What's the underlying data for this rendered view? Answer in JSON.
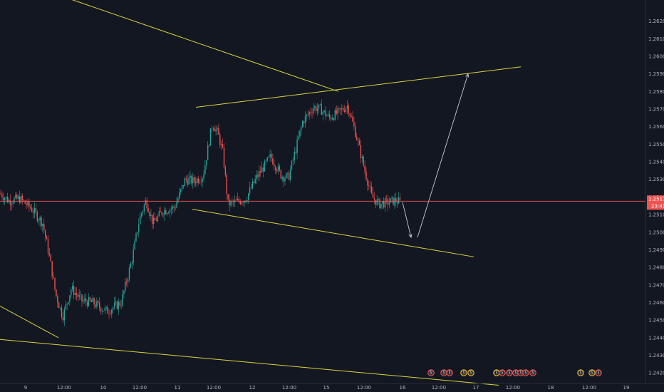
{
  "chart_data": {
    "type": "candlestick",
    "instrument_hint": "",
    "ylim": [
      1.2414,
      1.2632
    ],
    "y_ticks": [
      "1.26200",
      "1.26100",
      "1.26000",
      "1.25900",
      "1.25800",
      "1.25700",
      "1.25600",
      "1.25500",
      "1.25400",
      "1.25300",
      "1.25200",
      "1.25100",
      "1.25000",
      "1.24900",
      "1.24800",
      "1.24700",
      "1.24600",
      "1.24500",
      "1.24400",
      "1.24300",
      "1.24200"
    ],
    "y_tick_values": [
      1.262,
      1.261,
      1.26,
      1.259,
      1.258,
      1.257,
      1.256,
      1.255,
      1.254,
      1.253,
      1.252,
      1.251,
      1.25,
      1.249,
      1.248,
      1.247,
      1.246,
      1.245,
      1.244,
      1.243,
      1.242
    ],
    "xlim": [
      0,
      906
    ],
    "x_ticks": [
      {
        "label": "9",
        "x": 36
      },
      {
        "label": "12:00",
        "x": 90
      },
      {
        "label": "10",
        "x": 145
      },
      {
        "label": "12:00",
        "x": 196
      },
      {
        "label": "11",
        "x": 249
      },
      {
        "label": "12:00",
        "x": 300
      },
      {
        "label": "12",
        "x": 354
      },
      {
        "label": "12:00",
        "x": 406
      },
      {
        "label": "15",
        "x": 458
      },
      {
        "label": "12:00",
        "x": 511
      },
      {
        "label": "16",
        "x": 565
      },
      {
        "label": "12:00",
        "x": 616
      },
      {
        "label": "17",
        "x": 668
      },
      {
        "label": "12:00",
        "x": 720
      },
      {
        "label": "18",
        "x": 773
      },
      {
        "label": "12:00",
        "x": 827
      },
      {
        "label": "19",
        "x": 879
      }
    ],
    "current_price": {
      "value": 1.25176,
      "label": "1.25176",
      "countdown": "23:41"
    },
    "key_points": [
      {
        "x": 0,
        "y": 1.2522
      },
      {
        "x": 12,
        "y": 1.2518
      },
      {
        "x": 28,
        "y": 1.2519
      },
      {
        "x": 45,
        "y": 1.2513
      },
      {
        "x": 60,
        "y": 1.2505
      },
      {
        "x": 70,
        "y": 1.2485
      },
      {
        "x": 78,
        "y": 1.2465
      },
      {
        "x": 88,
        "y": 1.2452
      },
      {
        "x": 100,
        "y": 1.2468
      },
      {
        "x": 115,
        "y": 1.2461
      },
      {
        "x": 130,
        "y": 1.246
      },
      {
        "x": 150,
        "y": 1.2455
      },
      {
        "x": 170,
        "y": 1.246
      },
      {
        "x": 185,
        "y": 1.2484
      },
      {
        "x": 196,
        "y": 1.2508
      },
      {
        "x": 205,
        "y": 1.2518
      },
      {
        "x": 215,
        "y": 1.2505
      },
      {
        "x": 228,
        "y": 1.2512
      },
      {
        "x": 245,
        "y": 1.2514
      },
      {
        "x": 260,
        "y": 1.253
      },
      {
        "x": 272,
        "y": 1.2529
      },
      {
        "x": 285,
        "y": 1.2532
      },
      {
        "x": 298,
        "y": 1.2562
      },
      {
        "x": 306,
        "y": 1.2556
      },
      {
        "x": 313,
        "y": 1.2545
      },
      {
        "x": 320,
        "y": 1.2516
      },
      {
        "x": 330,
        "y": 1.2517
      },
      {
        "x": 345,
        "y": 1.2519
      },
      {
        "x": 360,
        "y": 1.2531
      },
      {
        "x": 380,
        "y": 1.2543
      },
      {
        "x": 395,
        "y": 1.2532
      },
      {
        "x": 405,
        "y": 1.2531
      },
      {
        "x": 415,
        "y": 1.2547
      },
      {
        "x": 425,
        "y": 1.2563
      },
      {
        "x": 440,
        "y": 1.2571
      },
      {
        "x": 450,
        "y": 1.257
      },
      {
        "x": 462,
        "y": 1.2565
      },
      {
        "x": 475,
        "y": 1.2568
      },
      {
        "x": 488,
        "y": 1.2572
      },
      {
        "x": 500,
        "y": 1.2555
      },
      {
        "x": 512,
        "y": 1.2535
      },
      {
        "x": 522,
        "y": 1.252
      },
      {
        "x": 532,
        "y": 1.2516
      },
      {
        "x": 545,
        "y": 1.2517
      },
      {
        "x": 555,
        "y": 1.2518
      },
      {
        "x": 562,
        "y": 1.2517
      }
    ],
    "trendlines": [
      {
        "color": "#d8d63a",
        "x1": 88,
        "y1": 1.2634,
        "x2": 475,
        "y2": 1.258
      },
      {
        "color": "#d8d63a",
        "x1": 275,
        "y1": 1.2571,
        "x2": 731,
        "y2": 1.2594
      },
      {
        "color": "#d8d63a",
        "x1": 270,
        "y1": 1.2513,
        "x2": 665,
        "y2": 1.2486
      },
      {
        "color": "#d8d63a",
        "x1": 0,
        "y1": 1.2458,
        "x2": 82,
        "y2": 1.244
      },
      {
        "color": "#d8d63a",
        "x1": 0,
        "y1": 1.2439,
        "x2": 700,
        "y2": 1.2413
      }
    ],
    "arrows": [
      {
        "color": "#c9ccd2",
        "x1": 565,
        "y1": 1.2517,
        "x2": 577,
        "y2": 1.2497
      },
      {
        "color": "#c9ccd2",
        "x1": 586,
        "y1": 1.2497,
        "x2": 657,
        "y2": 1.259
      }
    ],
    "colors": {
      "up": "#26a69a",
      "down": "#ef5350",
      "price_line": "#ef5350",
      "background": "#131722"
    }
  },
  "events": [
    {
      "x": 605,
      "text": "Ⓢ",
      "color": "#ef5350"
    },
    {
      "x": 623,
      "text": "Ⓢ",
      "color": "#ef5350"
    },
    {
      "x": 631,
      "text": "Ⓢ",
      "color": "#ef5350"
    },
    {
      "x": 651,
      "text": "Ⓢ",
      "color": "#f0b429"
    },
    {
      "x": 661,
      "text": "Ⓢ",
      "color": "#f0b429"
    },
    {
      "x": 697,
      "text": "Ⓢ",
      "color": "#f0b429"
    },
    {
      "x": 705,
      "text": "Ⓢ",
      "color": "#ef5350"
    },
    {
      "x": 715,
      "text": "Ⓢ",
      "color": "#ef5350"
    },
    {
      "x": 724,
      "text": "Ⓢ",
      "color": "#ef5350"
    },
    {
      "x": 731,
      "text": "Ⓢ",
      "color": "#ef5350"
    },
    {
      "x": 738,
      "text": "Ⓢ",
      "color": "#ef5350"
    },
    {
      "x": 748,
      "text": "Ⓢ",
      "color": "#ef5350"
    },
    {
      "x": 815,
      "text": "Ⓢ",
      "color": "#f0b429"
    },
    {
      "x": 831,
      "text": "Ⓢ",
      "color": "#f0b429"
    },
    {
      "x": 840,
      "text": "Ⓢ",
      "color": "#ef5350"
    }
  ]
}
